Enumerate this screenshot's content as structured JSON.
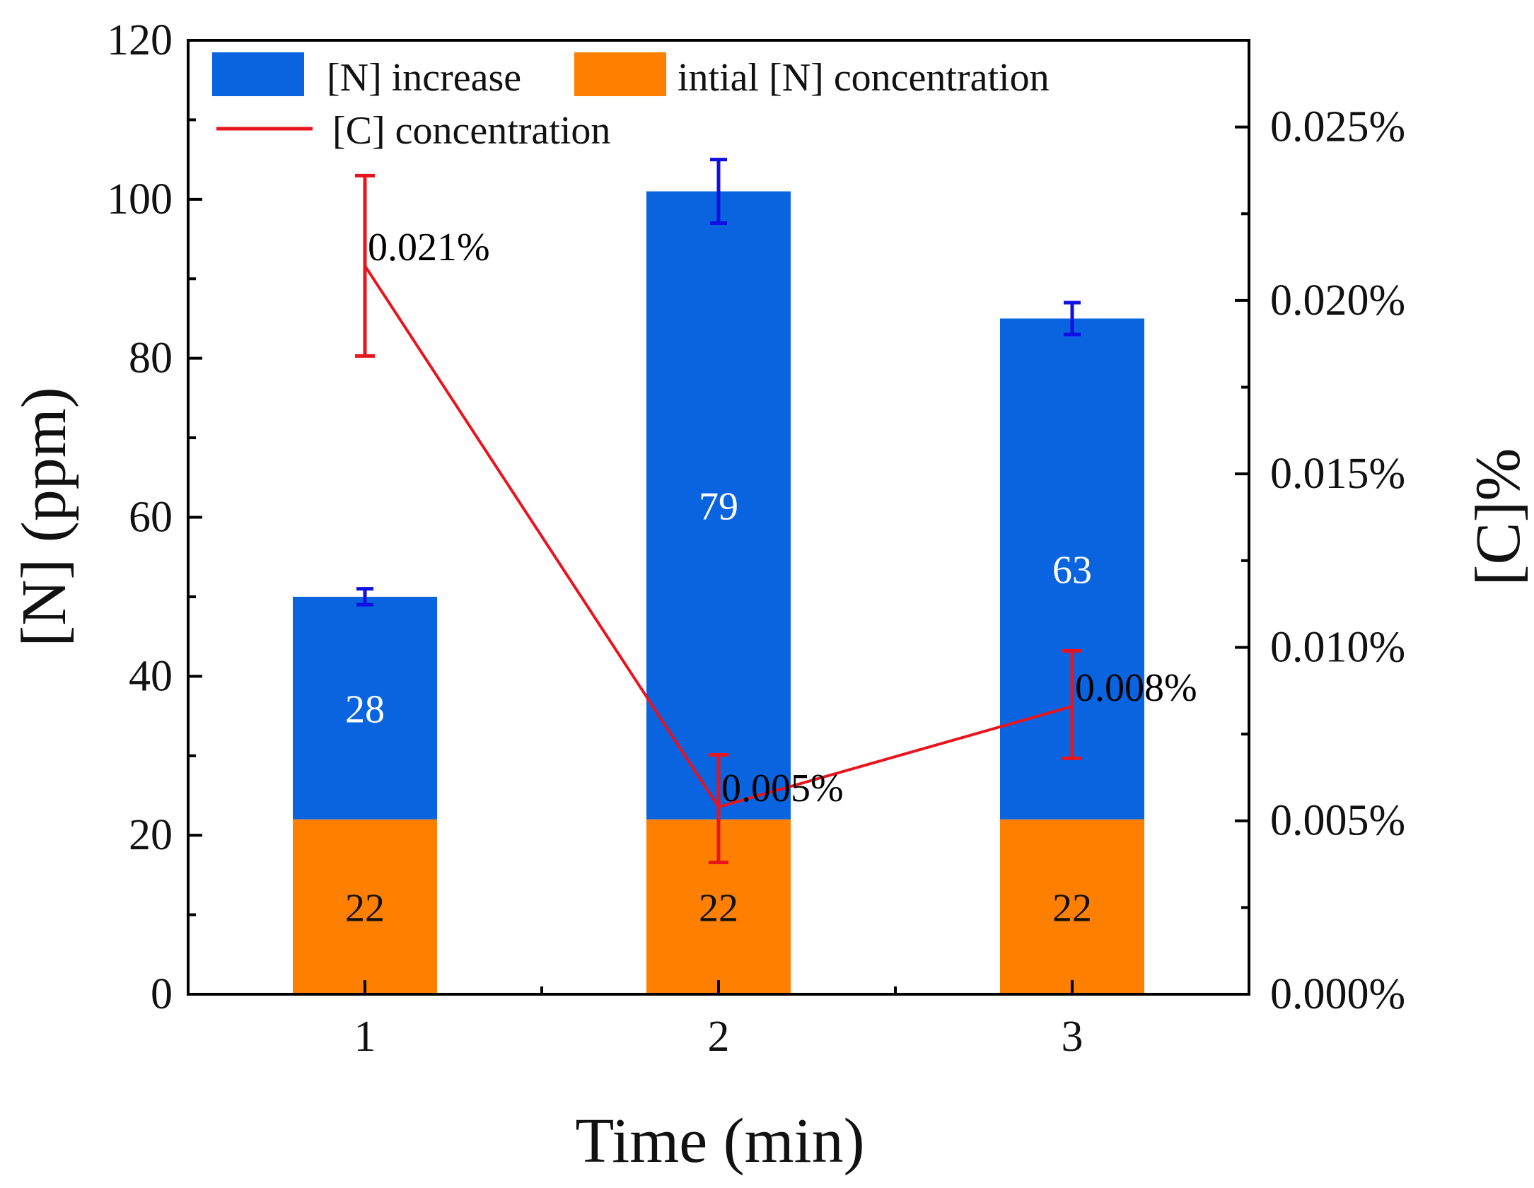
{
  "chart_data": {
    "type": "bar",
    "stacked": true,
    "categories": [
      "1",
      "2",
      "3"
    ],
    "xlabel": "Time (min)",
    "ylabel": "[N] (ppm)",
    "y2label": "[C]%",
    "ylim": [
      0,
      120
    ],
    "yticks": [
      "0",
      "20",
      "40",
      "60",
      "80",
      "100",
      "120"
    ],
    "y2lim": [
      0,
      0.0275
    ],
    "y2ticks": [
      {
        "value": 0.0,
        "label": "0.000%"
      },
      {
        "value": 0.005,
        "label": "0.005%"
      },
      {
        "value": 0.01,
        "label": "0.010%"
      },
      {
        "value": 0.015,
        "label": "0.015%"
      },
      {
        "value": 0.02,
        "label": "0.020%"
      },
      {
        "value": 0.025,
        "label": "0.025%"
      }
    ],
    "series": [
      {
        "name": "intial [N] concentration",
        "color": "#FF8000",
        "values": [
          22,
          22,
          22
        ],
        "labels": [
          "22",
          "22",
          "22"
        ],
        "label_color": "#111111"
      },
      {
        "name": "[N] increase",
        "color": "#0A64E0",
        "values": [
          28,
          79,
          63
        ],
        "labels": [
          "28",
          "79",
          "63"
        ],
        "label_color": "#ffffff",
        "error_color": "#1010E0",
        "errors": [
          1,
          4,
          2
        ]
      }
    ],
    "line_series": {
      "name": "[C] concentration",
      "axis": "right",
      "color": "#E8141E",
      "values": [
        0.021,
        0.0054,
        0.0083
      ],
      "labels": [
        "0.021%",
        "0.005%",
        "0.008%"
      ],
      "error_low": [
        0.0184,
        0.0038,
        0.0068
      ],
      "error_high": [
        0.0236,
        0.0069,
        0.0099
      ]
    },
    "legend": {
      "position": "top-left",
      "entries": [
        "[N] increase",
        "intial [N] concentration",
        "[C] concentration"
      ]
    }
  }
}
